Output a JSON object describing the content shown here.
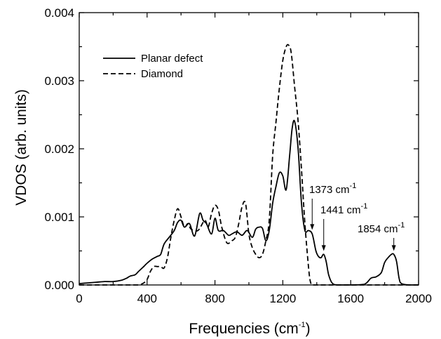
{
  "chart_data": {
    "type": "line",
    "xlabel": "Frequencies (cm",
    "xlabel_sup": "-1",
    "xlabel_suffix": ")",
    "ylabel": "VDOS (arb. units)",
    "xlim": [
      0,
      2000
    ],
    "ylim": [
      0,
      0.004
    ],
    "xticks": [
      0,
      400,
      800,
      1200,
      1600,
      2000
    ],
    "xtick_labels": [
      "0",
      "400",
      "800",
      "1200",
      "1600",
      "2000"
    ],
    "yticks": [
      0,
      0.001,
      0.002,
      0.003,
      0.004
    ],
    "ytick_labels": [
      "0.000",
      "0.001",
      "0.002",
      "0.003",
      "0.004"
    ],
    "grid": false,
    "legend_position": "top-left",
    "series": [
      {
        "name": "Planar defect",
        "style": "solid",
        "color": "#000000",
        "x": [
          0,
          50,
          100,
          150,
          200,
          250,
          280,
          300,
          330,
          350,
          380,
          400,
          430,
          460,
          480,
          500,
          530,
          560,
          580,
          600,
          620,
          650,
          680,
          710,
          730,
          750,
          780,
          800,
          820,
          850,
          880,
          900,
          930,
          960,
          990,
          1020,
          1040,
          1060,
          1080,
          1100,
          1120,
          1140,
          1160,
          1180,
          1200,
          1220,
          1240,
          1255,
          1270,
          1290,
          1310,
          1330,
          1350,
          1373,
          1395,
          1410,
          1425,
          1441,
          1455,
          1470,
          1490,
          1520,
          1600,
          1680,
          1720,
          1750,
          1780,
          1800,
          1820,
          1840,
          1854,
          1870,
          1885,
          1900,
          1950,
          2000
        ],
        "y": [
          2e-05,
          3e-05,
          4e-05,
          5e-05,
          5e-05,
          7e-05,
          0.0001,
          0.00013,
          0.00015,
          0.0002,
          0.00027,
          0.00032,
          0.00038,
          0.00042,
          0.00045,
          0.0006,
          0.0007,
          0.0008,
          0.00092,
          0.00095,
          0.00085,
          0.0009,
          0.00072,
          0.00105,
          0.00095,
          0.0009,
          0.00075,
          0.00098,
          0.0008,
          0.0008,
          0.00073,
          0.00075,
          0.00078,
          0.00073,
          0.0008,
          0.0007,
          0.00082,
          0.00085,
          0.00083,
          0.00065,
          0.0008,
          0.0012,
          0.00145,
          0.00165,
          0.0016,
          0.0014,
          0.0019,
          0.0023,
          0.0024,
          0.002,
          0.0012,
          0.0008,
          0.0008,
          0.00075,
          0.0005,
          0.00042,
          0.0004,
          0.00045,
          0.00035,
          0.00015,
          3e-05,
          0.0,
          0.0,
          1e-05,
          0.0001,
          0.00012,
          0.00018,
          0.00033,
          0.0004,
          0.00045,
          0.00045,
          0.00035,
          0.0001,
          2e-05,
          0.0,
          0.0
        ]
      },
      {
        "name": "Diamond",
        "style": "dashed",
        "color": "#000000",
        "x": [
          0,
          100,
          200,
          300,
          350,
          380,
          400,
          420,
          440,
          460,
          480,
          500,
          520,
          540,
          560,
          580,
          600,
          620,
          640,
          660,
          700,
          740,
          760,
          780,
          800,
          820,
          840,
          870,
          900,
          920,
          940,
          960,
          980,
          1000,
          1020,
          1040,
          1060,
          1080,
          1100,
          1120,
          1140,
          1160,
          1180,
          1200,
          1220,
          1235,
          1250,
          1270,
          1290,
          1310,
          1330,
          1350,
          1360,
          1370,
          1380,
          1400,
          1500,
          2000
        ],
        "y": [
          0.0,
          0.0,
          0.0,
          0.0,
          0.0,
          3e-05,
          8e-05,
          0.0002,
          0.00027,
          0.00027,
          0.00027,
          0.00025,
          0.0004,
          0.0007,
          0.00095,
          0.00112,
          0.001,
          0.00085,
          0.0009,
          0.00082,
          0.0008,
          0.00095,
          0.00085,
          0.00105,
          0.00117,
          0.0011,
          0.00085,
          0.00062,
          0.00065,
          0.0007,
          0.0009,
          0.00115,
          0.0012,
          0.00075,
          0.00055,
          0.00045,
          0.0004,
          0.00045,
          0.00065,
          0.00095,
          0.0019,
          0.0024,
          0.0029,
          0.0033,
          0.0035,
          0.00352,
          0.0034,
          0.0029,
          0.0024,
          0.0017,
          0.0009,
          0.0003,
          8e-05,
          0.0,
          0.0,
          0.0,
          0.0,
          0.0
        ]
      }
    ],
    "annotations": [
      {
        "text": "1373 cm",
        "sup": "-1",
        "x": 1373,
        "y": 0.00078
      },
      {
        "text": "1441 cm",
        "sup": "-1",
        "x": 1441,
        "y": 0.00047
      },
      {
        "text": "1854 cm",
        "sup": "-1",
        "x": 1854,
        "y": 0.00047
      }
    ]
  }
}
